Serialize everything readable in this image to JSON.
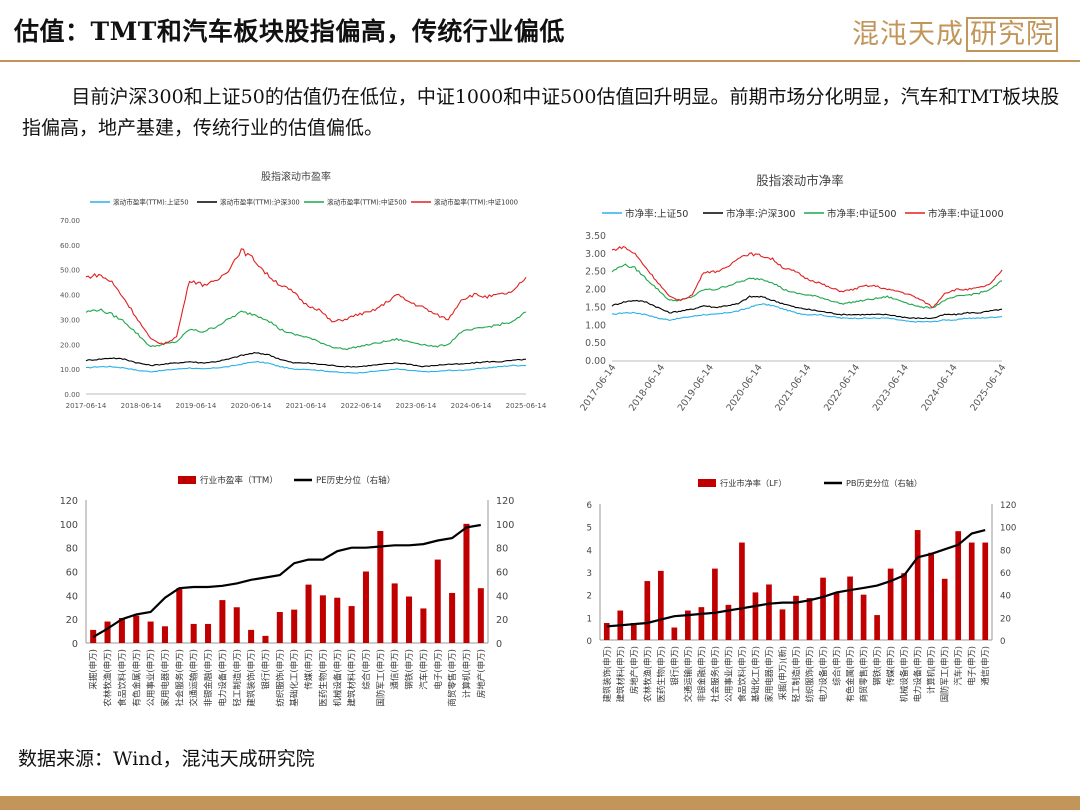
{
  "header": {
    "title": "估值：TMT和汽车板块股指偏高，传统行业偏低",
    "logo_main": "混沌天成",
    "logo_box": "研究院"
  },
  "intro_text": "目前沪深300和上证50的估值仍在低位，中证1000和中证500估值回升明显。前期市场分化明显，汽车和TMT板块股指偏高，地产基建，传统行业的估值偏低。",
  "source_text": "数据来源：Wind，混沌天成研究院",
  "colors": {
    "accent": "#c2965a",
    "bar": "#c00000",
    "blue": "#2ab0e8",
    "black": "#000000",
    "green": "#1fa64a",
    "red": "#e02020"
  },
  "chart_data": [
    {
      "type": "line",
      "title": "股指滚动市盈率",
      "x_ticks": [
        "2017-06-14",
        "2018-06-14",
        "2019-06-14",
        "2020-06-14",
        "2021-06-14",
        "2022-06-14",
        "2023-06-14",
        "2024-06-14",
        "2025-06-14"
      ],
      "ylim": [
        0,
        70
      ],
      "y_ticks": [
        "0.00",
        "10.00",
        "20.00",
        "30.00",
        "40.00",
        "50.00",
        "60.00",
        "70.00"
      ],
      "grid": false,
      "legend_position": "top",
      "series": [
        {
          "name": "滚动市盈率(TTM):上证50",
          "color": "#2ab0e8",
          "values": [
            10.5,
            11,
            11,
            10.5,
            9.5,
            9,
            9.5,
            10,
            10.5,
            10,
            10.5,
            11,
            12,
            13,
            12.5,
            11,
            10,
            10,
            9.5,
            9,
            8.5,
            8.5,
            9,
            9.5,
            10,
            9.5,
            9,
            9,
            9.5,
            9.5,
            10,
            10.5,
            11,
            11.5,
            11.5
          ]
        },
        {
          "name": "滚动市盈率(TTM):沪深300",
          "color": "#000000",
          "values": [
            13.5,
            14,
            14.5,
            14,
            12.5,
            11.5,
            12,
            12.5,
            13,
            12.5,
            13,
            14,
            15.5,
            16.5,
            16,
            14,
            12.5,
            12.5,
            12,
            11.5,
            11,
            11,
            11.5,
            12,
            12.5,
            12,
            11,
            11.5,
            12,
            12,
            12.5,
            13,
            13,
            13.5,
            14
          ]
        },
        {
          "name": "滚动市盈率(TTM):中证500",
          "color": "#1fa64a",
          "values": [
            33,
            34,
            32,
            29,
            24,
            19,
            20,
            21,
            26,
            25,
            27,
            30,
            33,
            32,
            30,
            26,
            24,
            23,
            21,
            19,
            18,
            19,
            20,
            21,
            22,
            21,
            20,
            19,
            20,
            25,
            26,
            27,
            28,
            29,
            33
          ]
        },
        {
          "name": "滚动市盈率(TTM):中证1000",
          "color": "#e02020",
          "values": [
            47,
            48,
            45,
            38,
            30,
            22,
            20,
            23,
            46,
            44,
            45,
            50,
            58,
            54,
            48,
            44,
            41,
            36,
            34,
            29,
            30,
            32,
            33,
            36,
            40,
            37,
            35,
            32,
            30,
            38,
            40,
            39,
            40,
            41,
            47
          ]
        }
      ]
    },
    {
      "type": "line",
      "title": "股指滚动市净率",
      "x_ticks": [
        "2017-06-14",
        "2018-06-14",
        "2019-06-14",
        "2020-06-14",
        "2021-06-14",
        "2022-06-14",
        "2023-06-14",
        "2024-06-14",
        "2025-06-14"
      ],
      "ylim": [
        0,
        3.5
      ],
      "y_ticks": [
        "0.00",
        "0.50",
        "1.00",
        "1.50",
        "2.00",
        "2.50",
        "3.00",
        "3.50"
      ],
      "grid": false,
      "legend_position": "top",
      "series": [
        {
          "name": "市净率:上证50",
          "color": "#2ab0e8",
          "values": [
            1.3,
            1.35,
            1.35,
            1.3,
            1.2,
            1.15,
            1.2,
            1.25,
            1.3,
            1.3,
            1.35,
            1.4,
            1.5,
            1.6,
            1.55,
            1.45,
            1.35,
            1.3,
            1.3,
            1.25,
            1.2,
            1.2,
            1.2,
            1.2,
            1.2,
            1.15,
            1.1,
            1.1,
            1.1,
            1.15,
            1.15,
            1.2,
            1.2,
            1.22,
            1.25
          ]
        },
        {
          "name": "市净率:沪深300",
          "color": "#000000",
          "values": [
            1.55,
            1.65,
            1.7,
            1.65,
            1.5,
            1.35,
            1.4,
            1.45,
            1.55,
            1.5,
            1.55,
            1.6,
            1.8,
            1.8,
            1.7,
            1.6,
            1.5,
            1.45,
            1.4,
            1.35,
            1.3,
            1.3,
            1.3,
            1.3,
            1.3,
            1.25,
            1.2,
            1.2,
            1.2,
            1.3,
            1.3,
            1.35,
            1.35,
            1.4,
            1.45
          ]
        },
        {
          "name": "市净率:中证500",
          "color": "#1fa64a",
          "values": [
            2.5,
            2.7,
            2.6,
            2.3,
            2.0,
            1.7,
            1.7,
            1.8,
            2.0,
            2.0,
            2.1,
            2.2,
            2.3,
            2.3,
            2.2,
            2.0,
            1.9,
            1.85,
            1.8,
            1.7,
            1.6,
            1.65,
            1.7,
            1.75,
            1.8,
            1.7,
            1.6,
            1.5,
            1.5,
            1.7,
            1.8,
            1.85,
            1.9,
            2.0,
            2.25
          ]
        },
        {
          "name": "市净率:中证1000",
          "color": "#e02020",
          "values": [
            3.1,
            3.2,
            3.0,
            2.6,
            2.2,
            1.8,
            1.7,
            1.85,
            2.5,
            2.5,
            2.6,
            2.9,
            3.0,
            2.95,
            2.85,
            2.6,
            2.5,
            2.3,
            2.2,
            2.05,
            1.95,
            2.0,
            2.1,
            2.1,
            2.0,
            1.95,
            1.85,
            1.7,
            1.5,
            1.9,
            2.0,
            2.0,
            2.05,
            2.15,
            2.55
          ]
        }
      ]
    },
    {
      "type": "bar",
      "title": "",
      "legend_position": "top",
      "ylim_left": [
        0,
        120
      ],
      "ylim_right": [
        0,
        120
      ],
      "y_ticks": [
        "0",
        "20",
        "40",
        "60",
        "80",
        "100",
        "120"
      ],
      "categories": [
        "采掘(申万)",
        "农林牧渔(申万)",
        "食品饮料(申万)",
        "有色金属(申万)",
        "公用事业(申万)",
        "家用电器(申万)",
        "社会服务(申万)",
        "交通运输(申万)",
        "非银金融(申万)",
        "电力设备(申万)",
        "轻工制造(申万)",
        "建筑装饰(申万)",
        "银行(申万)",
        "纺织服饰(申万)",
        "基础化工(申万)",
        "传媒(申万)",
        "医药生物(申万)",
        "机械设备(申万)",
        "建筑材料(申万)",
        "综合(申万)",
        "国防军工(申万)",
        "通信(申万)",
        "钢铁(申万)",
        "汽车(申万)",
        "电子(申万)",
        "商贸零售(申万)",
        "计算机(申万)",
        "房地产(申万)"
      ],
      "series": [
        {
          "name": "行业市盈率（TTM）",
          "color": "#c00000",
          "values": [
            11,
            18,
            21,
            23,
            18,
            14,
            46,
            16,
            16,
            36,
            30,
            11,
            6,
            26,
            28,
            49,
            40,
            38,
            31,
            60,
            94,
            50,
            39,
            29,
            70,
            42,
            100,
            46
          ]
        },
        {
          "name": "PE历史分位（右轴）",
          "color": "#000000",
          "values": [
            5,
            12,
            20,
            24,
            26,
            38,
            46,
            47,
            47,
            48,
            50,
            53,
            55,
            57,
            67,
            70,
            70,
            77,
            80,
            80,
            81,
            82,
            82,
            83,
            86,
            88,
            97,
            99
          ]
        }
      ]
    },
    {
      "type": "bar",
      "title": "",
      "legend_position": "top",
      "ylim_left": [
        0,
        6
      ],
      "ylim_right": [
        0,
        120
      ],
      "y_ticks_left": [
        "0",
        "1",
        "2",
        "3",
        "4",
        "5",
        "6"
      ],
      "y_ticks_right": [
        "0",
        "20",
        "40",
        "60",
        "80",
        "100",
        "120"
      ],
      "categories": [
        "建筑装饰(申万)",
        "建筑材料(申万)",
        "房地产(申万)",
        "农林牧渔(申万)",
        "医药生物(申万)",
        "银行(申万)",
        "交通运输(申万)",
        "非银金融(申万)",
        "社会服务(申万)",
        "公用事业(申万)",
        "食品饮料(申万)",
        "基础化工(申万)",
        "家用电器(申万)",
        "采掘(申万)(新)",
        "轻工制造(申万)",
        "纺织服饰(申万)",
        "电力设备(申万)",
        "综合(申万)",
        "有色金属(申万)",
        "商贸零售(申万)",
        "钢铁(申万)",
        "传媒(申万)",
        "机械设备(申万)",
        "电力设备(申万)",
        "计算机(申万)",
        "国防军工(申万)",
        "汽车(申万)",
        "电子(申万)",
        "通信(申万)"
      ],
      "series": [
        {
          "name": "行业市净率（LF）",
          "color": "#c00000",
          "values": [
            0.75,
            1.3,
            0.75,
            2.6,
            3.05,
            0.55,
            1.3,
            1.45,
            3.15,
            1.55,
            4.3,
            2.1,
            2.45,
            1.35,
            1.95,
            1.85,
            2.75,
            2.1,
            2.8,
            2.0,
            1.1,
            3.15,
            2.95,
            4.85,
            3.85,
            2.7,
            4.8,
            4.3,
            4.3
          ]
        },
        {
          "name": "PB历史分位（右轴）",
          "color": "#000000",
          "values": [
            12,
            13,
            14,
            15,
            18,
            21,
            22,
            23,
            24,
            26,
            28,
            30,
            32,
            33,
            33,
            35,
            38,
            42,
            44,
            46,
            48,
            52,
            57,
            73,
            76,
            80,
            84,
            94,
            97
          ]
        }
      ]
    }
  ]
}
